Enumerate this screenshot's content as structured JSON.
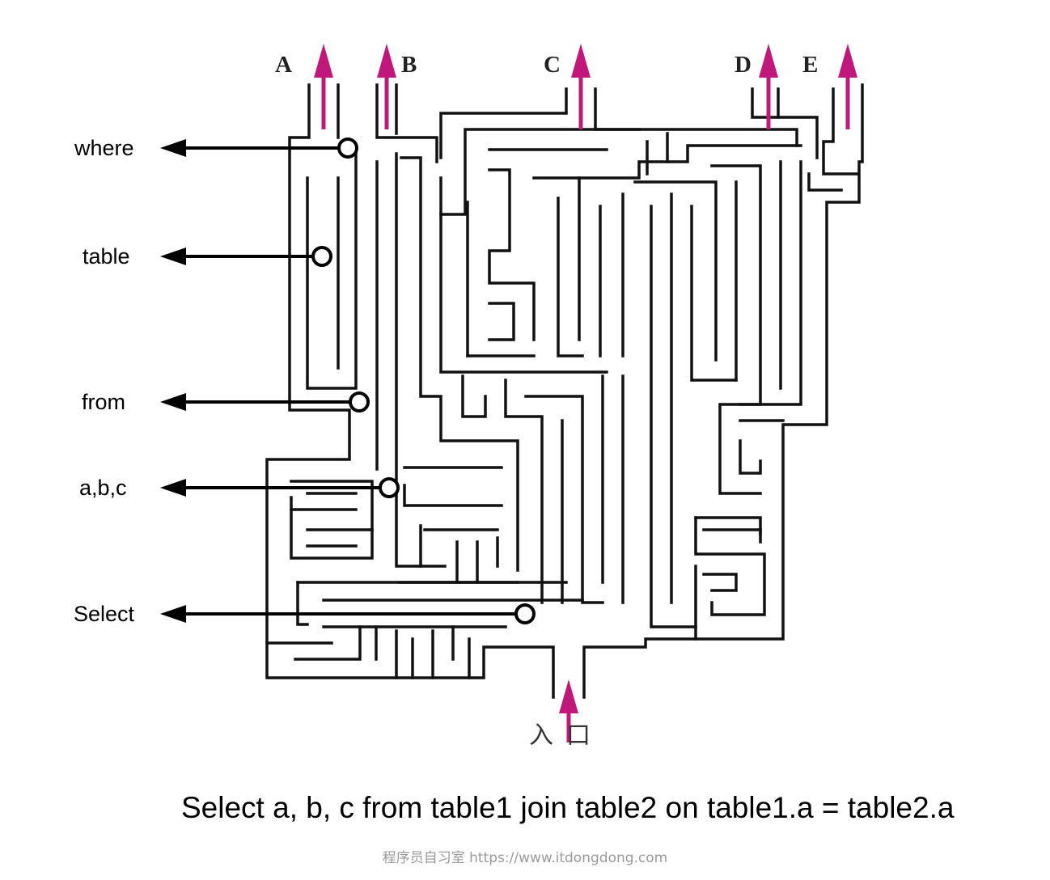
{
  "exits": [
    "A",
    "B",
    "C",
    "D",
    "E"
  ],
  "entrance_label": "入口",
  "clauses": [
    "where",
    "table",
    "from",
    "a,b,c",
    "Select"
  ],
  "query": "Select  a, b, c from table1 join table2 on table1.a = table2.a",
  "watermark": "程序员自习室 https://www.itdongdong.com",
  "colors": {
    "maze_wall": "#111111",
    "exit_arrow": "#c0187a",
    "pointer_arrow": "#000000",
    "marker_fill": "#ffffff"
  }
}
